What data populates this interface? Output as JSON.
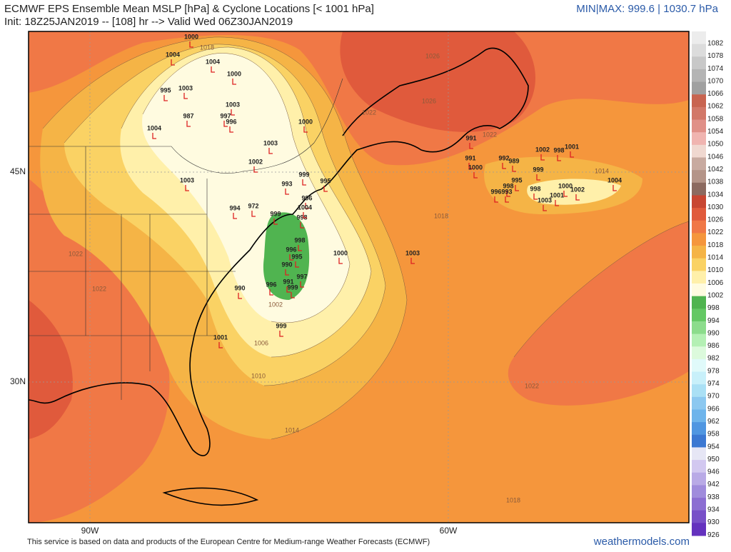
{
  "header": {
    "title": "ECMWF EPS Ensemble Mean MSLP [hPa] & Cyclone Locations [< 1001 hPa]",
    "init": "Init: 18Z25JAN2019 -- [108] hr --> Valid Wed 06Z30JAN2019",
    "minmax": "MIN|MAX: 999.6 | 1030.7 hPa"
  },
  "colorbar": {
    "levels": [
      1082,
      1078,
      1074,
      1070,
      1066,
      1062,
      1058,
      1054,
      1050,
      1046,
      1042,
      1038,
      1034,
      1030,
      1026,
      1022,
      1018,
      1014,
      1010,
      1006,
      1002,
      998,
      994,
      990,
      986,
      982,
      978,
      974,
      970,
      966,
      962,
      958,
      954,
      950,
      946,
      942,
      938,
      934,
      930,
      926
    ],
    "colors": [
      "#ececec",
      "#dcdcdc",
      "#c8c8c8",
      "#b4b4b4",
      "#a0a0a0",
      "#c86450",
      "#d27868",
      "#e09088",
      "#f0b4b0",
      "#f0d8d0",
      "#c8aaa0",
      "#b49488",
      "#8c6a60",
      "#c84632",
      "#e05a3c",
      "#f07846",
      "#f5963c",
      "#f5b446",
      "#fad264",
      "#fff0aa",
      "#fffbe0",
      "#50b450",
      "#64c864",
      "#8cdc8c",
      "#b4f0b4",
      "#dcfadc",
      "#e0fafa",
      "#c8f0fa",
      "#aae0f5",
      "#8cc8f0",
      "#6eb4eb",
      "#5096e1",
      "#3c78d2",
      "#e6e6f5",
      "#d2c8f0",
      "#b9aae6",
      "#a08cdc",
      "#8c6ed2",
      "#7850c8",
      "#6432be"
    ]
  },
  "axes": {
    "lat": [
      "45N",
      "30N"
    ],
    "lon": [
      "90W",
      "60W"
    ]
  },
  "contour_labels": [
    "1026",
    "1026",
    "1022",
    "1022",
    "1014",
    "1018",
    "1022",
    "1022",
    "1006",
    "1010",
    "1014",
    "1022",
    "1018",
    "1002",
    "1018"
  ],
  "cyclones": [
    "1000",
    "1004",
    "1004",
    "995",
    "1003",
    "987",
    "1004",
    "1003",
    "1003",
    "997",
    "996",
    "1000",
    "1000",
    "1003",
    "1002",
    "993",
    "999",
    "995",
    "996",
    "994",
    "972",
    "999",
    "998",
    "996",
    "995",
    "990",
    "997",
    "991",
    "996",
    "999",
    "1000",
    "1003",
    "990",
    "1001",
    "999",
    "991",
    "991",
    "1000",
    "992",
    "989",
    "1002",
    "998",
    "1001",
    "999",
    "995",
    "998",
    "996",
    "993",
    "998",
    "1001",
    "1000",
    "1002",
    "1003",
    "1004",
    "998",
    "1004"
  ],
  "footer": {
    "credit": "This service is based on data and products of the European Centre for Medium-range Weather Forecasts (ECMWF)",
    "site": "weathermodels.com"
  }
}
